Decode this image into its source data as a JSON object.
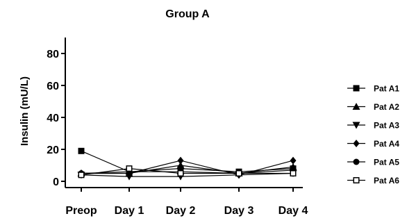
{
  "chart_data": {
    "type": "line",
    "title": "Group A",
    "xlabel": "",
    "ylabel": "Insulin (mU/L)",
    "categories": [
      "Preop",
      "Day 1",
      "Day 2",
      "Day 3",
      "Day 4"
    ],
    "ylim": [
      0,
      90
    ],
    "yticks": [
      0,
      20,
      40,
      60,
      80
    ],
    "grid": false,
    "legend": "right",
    "series": [
      {
        "name": "Pat A1",
        "marker": "square",
        "values": [
          19,
          6,
          8,
          6,
          8
        ]
      },
      {
        "name": "Pat A2",
        "marker": "triangle-up",
        "values": [
          5,
          5,
          10,
          5,
          9
        ]
      },
      {
        "name": "Pat A3",
        "marker": "triangle-down",
        "values": [
          4,
          3,
          3,
          4,
          5
        ]
      },
      {
        "name": "Pat A4",
        "marker": "diamond",
        "values": [
          5,
          5,
          13,
          4,
          13
        ]
      },
      {
        "name": "Pat A5",
        "marker": "circle",
        "values": [
          5,
          6,
          6,
          5,
          7
        ]
      },
      {
        "name": "Pat A6",
        "marker": "open-square",
        "values": [
          4,
          8,
          5,
          5,
          5
        ]
      }
    ]
  }
}
